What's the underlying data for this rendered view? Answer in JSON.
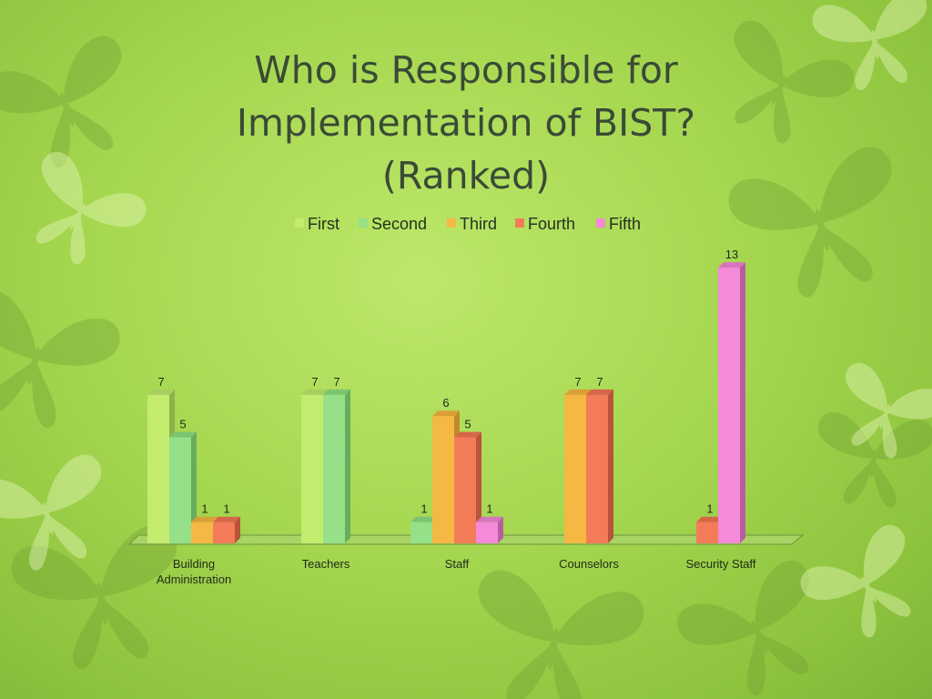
{
  "slide": {
    "title_lines": [
      "Who is Responsible for",
      "Implementation of BIST?",
      "(Ranked)"
    ]
  },
  "chart_data": {
    "type": "bar",
    "title": "",
    "xlabel": "",
    "ylabel": "",
    "ylim": [
      0,
      13
    ],
    "grid": false,
    "legend": "top",
    "categories": [
      [
        "Building",
        "Administration"
      ],
      [
        "Teachers"
      ],
      [
        "Staff"
      ],
      [
        "Counselors"
      ],
      [
        "Security Staff"
      ]
    ],
    "series": [
      {
        "name": "First",
        "color": "#c3ec6f",
        "side": "#8fb14c",
        "top": "#a9cd5e",
        "values": [
          7,
          7,
          null,
          null,
          null
        ]
      },
      {
        "name": "Second",
        "color": "#95e088",
        "side": "#66ad5c",
        "top": "#7bc570",
        "values": [
          5,
          7,
          1,
          null,
          null
        ]
      },
      {
        "name": "Third",
        "color": "#f5b843",
        "side": "#c08a28",
        "top": "#d9a036",
        "values": [
          1,
          null,
          6,
          7,
          null
        ]
      },
      {
        "name": "Fourth",
        "color": "#f47b58",
        "side": "#b9533a",
        "top": "#d66648",
        "values": [
          1,
          null,
          5,
          7,
          1
        ]
      },
      {
        "name": "Fifth",
        "color": "#f58ad8",
        "side": "#b85ea0",
        "top": "#d675bd",
        "values": [
          null,
          null,
          1,
          null,
          13
        ]
      }
    ]
  }
}
